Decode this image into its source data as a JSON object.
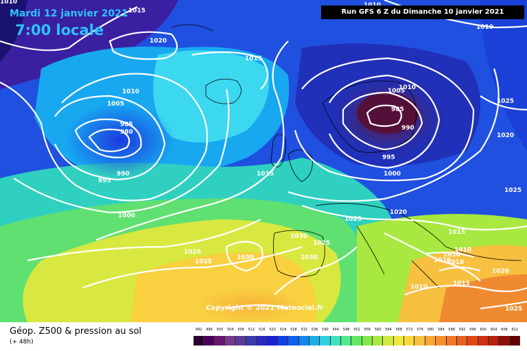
{
  "header": {
    "date": "Mardi 12 janvier 2021",
    "time": "7:00 locale",
    "run": "Run GFS 6 Z du Dimanche 10 janvier 2021"
  },
  "copyright": "Copyright © 2021 Meteociel.fr",
  "footer": {
    "title": "Géop. Z500 & pression au sol",
    "subtitle": "(+ 48h)"
  },
  "isobar_labels": [
    {
      "text": "1010"
    },
    {
      "text": "1015"
    },
    {
      "text": "1010"
    },
    {
      "text": "1010"
    },
    {
      "text": "1020"
    },
    {
      "text": "1015"
    },
    {
      "text": "1010"
    },
    {
      "text": "1005"
    },
    {
      "text": "985"
    },
    {
      "text": "980"
    },
    {
      "text": "990"
    },
    {
      "text": "995"
    },
    {
      "text": "1000"
    },
    {
      "text": "1015"
    },
    {
      "text": "1005"
    },
    {
      "text": "1010"
    },
    {
      "text": "985"
    },
    {
      "text": "990"
    },
    {
      "text": "995"
    },
    {
      "text": "1000"
    },
    {
      "text": "1025"
    },
    {
      "text": "1020"
    },
    {
      "text": "1025"
    },
    {
      "text": "1020"
    },
    {
      "text": "1015"
    },
    {
      "text": "1030"
    },
    {
      "text": "1025"
    },
    {
      "text": "1030"
    },
    {
      "text": "1030"
    },
    {
      "text": "1020"
    },
    {
      "text": "1025"
    },
    {
      "text": "1025"
    },
    {
      "text": "1010"
    },
    {
      "text": "1010"
    },
    {
      "text": "1010"
    },
    {
      "text": "1010"
    },
    {
      "text": "1015"
    },
    {
      "text": "1010"
    },
    {
      "text": "1020"
    },
    {
      "text": "1025"
    }
  ],
  "scale": {
    "values": [
      "492",
      "496",
      "500",
      "504",
      "508",
      "512",
      "516",
      "520",
      "524",
      "528",
      "532",
      "536",
      "540",
      "544",
      "548",
      "552",
      "556",
      "560",
      "564",
      "568",
      "572",
      "576",
      "580",
      "584",
      "588",
      "592",
      "596",
      "600",
      "604",
      "608",
      "612"
    ],
    "colors": [
      "#2a0030",
      "#4a0058",
      "#6a1470",
      "#7a3a8a",
      "#5a3a9a",
      "#3a3aaa",
      "#2a2ac0",
      "#1a20d8",
      "#1040e8",
      "#1060f0",
      "#1488f0",
      "#1cb0e8",
      "#30d0e0",
      "#40e0c0",
      "#50e890",
      "#60e860",
      "#80e848",
      "#a8e840",
      "#d0e840",
      "#f0e840",
      "#f8d840",
      "#f8c040",
      "#f8a838",
      "#f89030",
      "#f07828",
      "#e86020",
      "#e04818",
      "#d03010",
      "#b82010",
      "#901008",
      "#600000"
    ]
  }
}
